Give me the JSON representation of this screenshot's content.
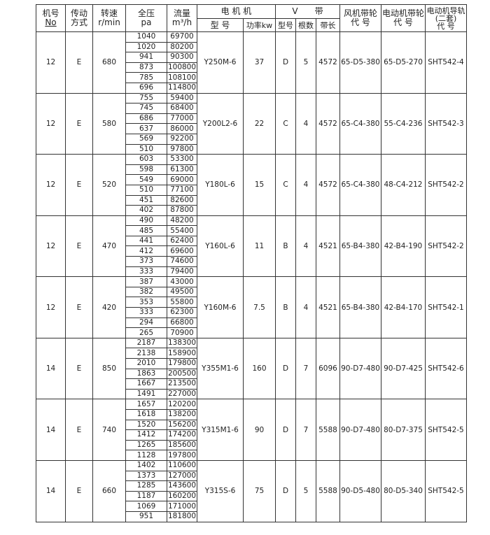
{
  "header": {
    "machine_no": "机号",
    "machine_no_sub": "No",
    "drive": "传动",
    "drive_sub": "方式",
    "speed": "转速",
    "speed_unit": "r/min",
    "pressure": "全压",
    "pressure_unit": "pa",
    "flow": "流量",
    "flow_unit": "m³/h",
    "motor": "电 机 机",
    "motor_model": "型 号",
    "motor_power": "功率kw",
    "vbelt": "V　　带",
    "belt_type": "型号",
    "belt_count": "根数",
    "belt_length": "带长",
    "fan_pulley": "风机带轮",
    "fan_pulley_sub": "代 号",
    "motor_pulley": "电动机带轮",
    "motor_pulley_sub": "代 号",
    "rail": "电动机导轨",
    "rail_set": "(二套)",
    "rail_sub": "代 号"
  },
  "groups": [
    {
      "no": "12",
      "drive": "E",
      "speed": "680",
      "pressure": [
        "1040",
        "1020",
        "941",
        "873",
        "785",
        "696"
      ],
      "flow": [
        "69700",
        "80200",
        "90300",
        "100800",
        "108100",
        "114800"
      ],
      "motor": "Y250M-6",
      "power": "37",
      "belt_type": "D",
      "belt_count": "5",
      "belt_length": "4572",
      "fan_pulley": "65-D5-380",
      "motor_pulley": "65-D5-270",
      "rail": "SHT542-4"
    },
    {
      "no": "12",
      "drive": "E",
      "speed": "580",
      "pressure": [
        "755",
        "745",
        "686",
        "637",
        "569",
        "510"
      ],
      "flow": [
        "59400",
        "68400",
        "77000",
        "86000",
        "92200",
        "97800"
      ],
      "motor": "Y200L2-6",
      "power": "22",
      "belt_type": "C",
      "belt_count": "4",
      "belt_length": "4572",
      "fan_pulley": "65-C4-380",
      "motor_pulley": "55-C4-236",
      "rail": "SHT542-3"
    },
    {
      "no": "12",
      "drive": "E",
      "speed": "520",
      "pressure": [
        "603",
        "598",
        "549",
        "510",
        "451",
        "402"
      ],
      "flow": [
        "53300",
        "61300",
        "69000",
        "77100",
        "82600",
        "87800"
      ],
      "motor": "Y180L-6",
      "power": "15",
      "belt_type": "C",
      "belt_count": "4",
      "belt_length": "4572",
      "fan_pulley": "65-C4-380",
      "motor_pulley": "48-C4-212",
      "rail": "SHT542-2"
    },
    {
      "no": "12",
      "drive": "E",
      "speed": "470",
      "pressure": [
        "490",
        "485",
        "441",
        "412",
        "373",
        "333"
      ],
      "flow": [
        "48200",
        "55400",
        "62400",
        "69600",
        "74600",
        "79400"
      ],
      "motor": "Y160L-6",
      "power": "11",
      "belt_type": "B",
      "belt_count": "4",
      "belt_length": "4521",
      "fan_pulley": "65-B4-380",
      "motor_pulley": "42-B4-190",
      "rail": "SHT542-2"
    },
    {
      "no": "12",
      "drive": "E",
      "speed": "420",
      "pressure": [
        "387",
        "382",
        "353",
        "333",
        "294",
        "265"
      ],
      "flow": [
        "43000",
        "49500",
        "55800",
        "62300",
        "66800",
        "70900"
      ],
      "motor": "Y160M-6",
      "power": "7.5",
      "belt_type": "B",
      "belt_count": "4",
      "belt_length": "4521",
      "fan_pulley": "65-B4-380",
      "motor_pulley": "42-B4-170",
      "rail": "SHT542-1"
    },
    {
      "no": "14",
      "drive": "E",
      "speed": "850",
      "pressure": [
        "2187",
        "2138",
        "2010",
        "1863",
        "1667",
        "1491"
      ],
      "flow": [
        "138300",
        "158900",
        "179800",
        "200500",
        "213500",
        "227000"
      ],
      "motor": "Y355M1-6",
      "power": "160",
      "belt_type": "D",
      "belt_count": "7",
      "belt_length": "6096",
      "fan_pulley": "90-D7-480",
      "motor_pulley": "90-D7-425",
      "rail": "SHT542-6"
    },
    {
      "no": "14",
      "drive": "E",
      "speed": "740",
      "pressure": [
        "1657",
        "1618",
        "1520",
        "1412",
        "1265",
        "1128"
      ],
      "flow": [
        "120200",
        "138200",
        "156200",
        "174200",
        "185600",
        "197800"
      ],
      "motor": "Y315M1-6",
      "power": "90",
      "belt_type": "D",
      "belt_count": "7",
      "belt_length": "5588",
      "fan_pulley": "90-D7-480",
      "motor_pulley": "80-D7-375",
      "rail": "SHT542-5"
    },
    {
      "no": "14",
      "drive": "E",
      "speed": "660",
      "pressure": [
        "1402",
        "1373",
        "1285",
        "1187",
        "1069",
        "951"
      ],
      "flow": [
        "110600",
        "127000",
        "143600",
        "160200",
        "171000",
        "181800"
      ],
      "motor": "Y315S-6",
      "power": "75",
      "belt_type": "D",
      "belt_count": "5",
      "belt_length": "5588",
      "fan_pulley": "90-D5-480",
      "motor_pulley": "80-D5-340",
      "rail": "SHT542-5"
    }
  ]
}
